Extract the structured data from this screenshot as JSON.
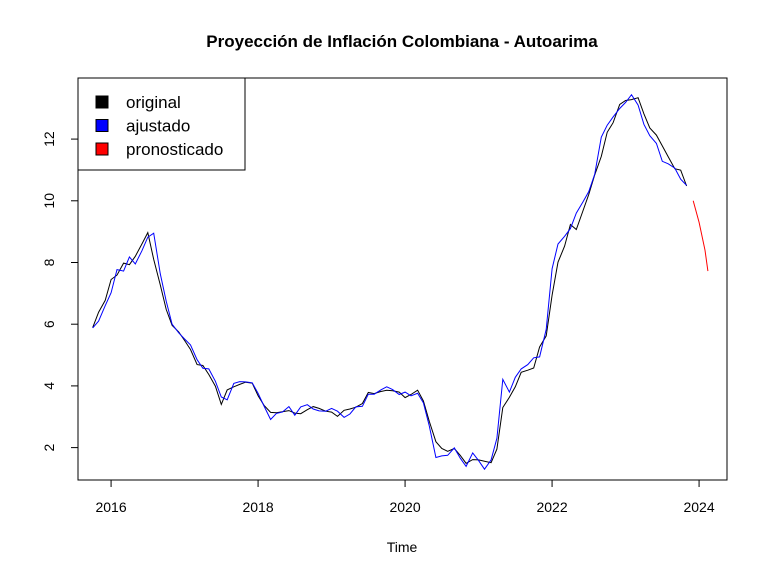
{
  "chart_data": {
    "type": "line",
    "title": "Proyección de Inflación Colombiana - Autoarima",
    "xlabel": "Time",
    "ylabel": "",
    "xlim": [
      2015.55,
      2024.38
    ],
    "ylim": [
      0.95,
      13.98
    ],
    "x_ticks": [
      2016,
      2018,
      2020,
      2022,
      2024
    ],
    "x_tick_labels": [
      "2016",
      "2018",
      "2020",
      "2022",
      "2024"
    ],
    "y_ticks": [
      2,
      4,
      6,
      8,
      10,
      12
    ],
    "y_tick_labels": [
      "2",
      "4",
      "6",
      "8",
      "10",
      "12"
    ],
    "legend": {
      "position": "top-left",
      "entries": [
        {
          "label": "original",
          "color": "#000000"
        },
        {
          "label": "ajustado",
          "color": "#0000FF"
        },
        {
          "label": "pronosticado",
          "color": "#FF0000"
        }
      ]
    },
    "series": [
      {
        "name": "original",
        "color": "#000000",
        "x": [
          2015.75,
          2015.83,
          2015.92,
          2016.0,
          2016.08,
          2016.17,
          2016.25,
          2016.33,
          2016.42,
          2016.5,
          2016.58,
          2016.67,
          2016.75,
          2016.83,
          2016.92,
          2017.0,
          2017.08,
          2017.17,
          2017.25,
          2017.33,
          2017.42,
          2017.5,
          2017.58,
          2017.67,
          2017.75,
          2017.83,
          2017.92,
          2018.0,
          2018.08,
          2018.17,
          2018.25,
          2018.33,
          2018.42,
          2018.5,
          2018.58,
          2018.67,
          2018.75,
          2018.83,
          2018.92,
          2019.0,
          2019.08,
          2019.17,
          2019.25,
          2019.33,
          2019.42,
          2019.5,
          2019.58,
          2019.67,
          2019.75,
          2019.83,
          2019.92,
          2020.0,
          2020.08,
          2020.17,
          2020.25,
          2020.33,
          2020.42,
          2020.5,
          2020.58,
          2020.67,
          2020.75,
          2020.83,
          2020.92,
          2021.0,
          2021.08,
          2021.17,
          2021.25,
          2021.33,
          2021.42,
          2021.5,
          2021.58,
          2021.67,
          2021.75,
          2021.83,
          2021.92,
          2022.0,
          2022.08,
          2022.17,
          2022.25,
          2022.33,
          2022.42,
          2022.5,
          2022.58,
          2022.67,
          2022.75,
          2022.83,
          2022.92,
          2023.0,
          2023.08,
          2023.17,
          2023.25,
          2023.33,
          2023.42,
          2023.5,
          2023.58,
          2023.67,
          2023.75,
          2023.83
        ],
        "y": [
          5.89,
          6.39,
          6.77,
          7.45,
          7.59,
          7.98,
          7.93,
          8.2,
          8.6,
          8.97,
          8.1,
          7.27,
          6.48,
          5.96,
          5.75,
          5.47,
          5.18,
          4.69,
          4.66,
          4.37,
          3.99,
          3.4,
          3.87,
          3.97,
          4.05,
          4.12,
          4.09,
          3.68,
          3.37,
          3.14,
          3.13,
          3.16,
          3.2,
          3.12,
          3.1,
          3.23,
          3.33,
          3.27,
          3.18,
          3.15,
          3.01,
          3.21,
          3.25,
          3.31,
          3.43,
          3.79,
          3.75,
          3.82,
          3.86,
          3.84,
          3.8,
          3.62,
          3.72,
          3.86,
          3.51,
          2.85,
          2.19,
          1.97,
          1.88,
          1.97,
          1.75,
          1.49,
          1.61,
          1.6,
          1.56,
          1.51,
          1.95,
          3.3,
          3.63,
          3.97,
          4.44,
          4.51,
          4.58,
          5.26,
          5.62,
          6.94,
          8.01,
          8.53,
          9.23,
          9.07,
          9.67,
          10.21,
          10.84,
          11.44,
          12.22,
          12.53,
          13.12,
          13.25,
          13.28,
          13.34,
          12.82,
          12.36,
          12.13,
          11.78,
          11.43,
          11.04,
          10.99,
          10.48
        ]
      },
      {
        "name": "ajustado",
        "color": "#0000FF",
        "x": [
          2015.75,
          2015.83,
          2015.92,
          2016.0,
          2016.08,
          2016.17,
          2016.25,
          2016.33,
          2016.42,
          2016.5,
          2016.58,
          2016.67,
          2016.75,
          2016.83,
          2016.92,
          2017.0,
          2017.08,
          2017.17,
          2017.25,
          2017.33,
          2017.42,
          2017.5,
          2017.58,
          2017.67,
          2017.75,
          2017.83,
          2017.92,
          2018.0,
          2018.08,
          2018.17,
          2018.25,
          2018.33,
          2018.42,
          2018.5,
          2018.58,
          2018.67,
          2018.75,
          2018.83,
          2018.92,
          2019.0,
          2019.08,
          2019.17,
          2019.25,
          2019.33,
          2019.42,
          2019.5,
          2019.58,
          2019.67,
          2019.75,
          2019.83,
          2019.92,
          2020.0,
          2020.08,
          2020.17,
          2020.25,
          2020.33,
          2020.42,
          2020.5,
          2020.58,
          2020.67,
          2020.75,
          2020.83,
          2020.92,
          2021.0,
          2021.08,
          2021.17,
          2021.25,
          2021.33,
          2021.42,
          2021.5,
          2021.58,
          2021.67,
          2021.75,
          2021.83,
          2021.92,
          2022.0,
          2022.08,
          2022.17,
          2022.25,
          2022.33,
          2022.42,
          2022.5,
          2022.58,
          2022.67,
          2022.75,
          2022.83,
          2022.92,
          2023.0,
          2023.08,
          2023.17,
          2023.25,
          2023.33,
          2023.42,
          2023.5,
          2023.58,
          2023.67,
          2023.75,
          2023.83
        ],
        "y": [
          5.88,
          6.1,
          6.6,
          7.02,
          7.77,
          7.72,
          8.18,
          7.95,
          8.38,
          8.82,
          8.95,
          7.63,
          6.75,
          6.0,
          5.72,
          5.52,
          5.33,
          4.85,
          4.57,
          4.55,
          4.15,
          3.64,
          3.55,
          4.08,
          4.14,
          4.13,
          4.1,
          3.76,
          3.35,
          2.91,
          3.11,
          3.15,
          3.33,
          3.05,
          3.32,
          3.39,
          3.25,
          3.19,
          3.18,
          3.27,
          3.18,
          2.98,
          3.09,
          3.32,
          3.34,
          3.73,
          3.73,
          3.87,
          3.97,
          3.88,
          3.72,
          3.8,
          3.68,
          3.76,
          3.45,
          2.7,
          1.68,
          1.73,
          1.75,
          1.99,
          1.66,
          1.39,
          1.83,
          1.58,
          1.3,
          1.6,
          2.3,
          4.21,
          3.8,
          4.28,
          4.55,
          4.69,
          4.91,
          4.94,
          5.83,
          7.8,
          8.6,
          8.85,
          9.1,
          9.6,
          9.96,
          10.3,
          10.86,
          12.06,
          12.45,
          12.72,
          12.99,
          13.19,
          13.44,
          13.1,
          12.48,
          12.11,
          11.86,
          11.28,
          11.2,
          11.06,
          10.7,
          10.5
        ]
      },
      {
        "name": "pronosticado",
        "color": "#FF0000",
        "x": [
          2023.92,
          2024.0,
          2024.08,
          2024.12
        ],
        "y": [
          10.0,
          9.3,
          8.4,
          7.72
        ]
      }
    ]
  }
}
